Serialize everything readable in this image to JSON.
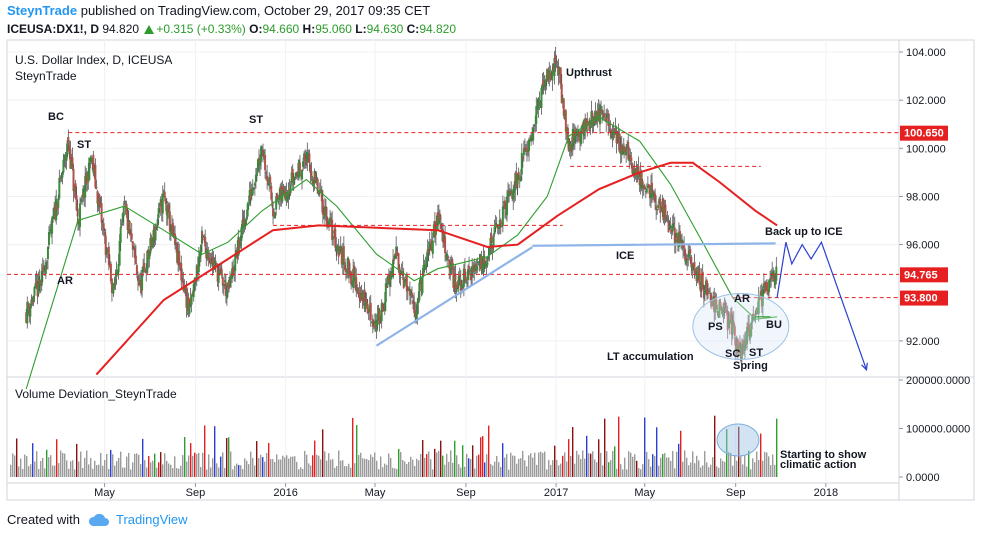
{
  "header": {
    "author": "SteynTrade",
    "published_text": "published on TradingView.com, October 29, 2017 09:35 CET",
    "symbol": "ICEUSA:DX1!, D",
    "last": "94.820",
    "change": "+0.315 (+0.33%)",
    "o_label": "O:",
    "o_value": "94.660",
    "h_label": "H:",
    "h_value": "95.060",
    "l_label": "L:",
    "l_value": "94.630",
    "c_label": "C:",
    "c_value": "94.820"
  },
  "footer": {
    "created_with": "Created with",
    "brand": "TradingView"
  },
  "chart_data": [
    {
      "type": "candlestick",
      "title": "U.S. Dollar Index, D, ICEUSA",
      "subtitle": "SteynTrade",
      "ylim": [
        90.5,
        104.5
      ],
      "y_ticks": [
        "104.000",
        "102.000",
        "100.000",
        "98.000",
        "96.000",
        "92.000"
      ],
      "x_ticks": [
        "May",
        "Sep",
        "2016",
        "May",
        "Sep",
        "2017",
        "May",
        "Sep",
        "2018"
      ],
      "price_path": [
        {
          "x": "2015-01-15",
          "y": 93.2
        },
        {
          "x": "2015-02-05",
          "y": 94.5
        },
        {
          "x": "2015-03-13",
          "y": 100.3
        },
        {
          "x": "2015-03-26",
          "y": 97.0
        },
        {
          "x": "2015-04-13",
          "y": 99.6
        },
        {
          "x": "2015-05-13",
          "y": 94.0
        },
        {
          "x": "2015-05-28",
          "y": 97.5
        },
        {
          "x": "2015-06-18",
          "y": 94.2
        },
        {
          "x": "2015-07-20",
          "y": 98.0
        },
        {
          "x": "2015-08-24",
          "y": 93.2
        },
        {
          "x": "2015-09-10",
          "y": 96.2
        },
        {
          "x": "2015-10-15",
          "y": 94.0
        },
        {
          "x": "2015-11-30",
          "y": 100.2
        },
        {
          "x": "2015-12-15",
          "y": 97.5
        },
        {
          "x": "2016-01-29",
          "y": 99.6
        },
        {
          "x": "2016-03-10",
          "y": 96.0
        },
        {
          "x": "2016-05-03",
          "y": 92.6
        },
        {
          "x": "2016-05-30",
          "y": 95.6
        },
        {
          "x": "2016-06-23",
          "y": 93.2
        },
        {
          "x": "2016-07-25",
          "y": 97.2
        },
        {
          "x": "2016-08-18",
          "y": 94.2
        },
        {
          "x": "2016-09-30",
          "y": 95.6
        },
        {
          "x": "2016-11-10",
          "y": 98.8
        },
        {
          "x": "2016-12-20",
          "y": 103.0
        },
        {
          "x": "2017-01-03",
          "y": 103.5
        },
        {
          "x": "2017-01-18",
          "y": 100.2
        },
        {
          "x": "2017-02-28",
          "y": 101.5
        },
        {
          "x": "2017-04-03",
          "y": 100.0
        },
        {
          "x": "2017-04-24",
          "y": 98.8
        },
        {
          "x": "2017-06-05",
          "y": 96.8
        },
        {
          "x": "2017-07-20",
          "y": 94.2
        },
        {
          "x": "2017-08-28",
          "y": 92.6
        },
        {
          "x": "2017-09-08",
          "y": 91.3
        },
        {
          "x": "2017-09-28",
          "y": 93.4
        },
        {
          "x": "2017-10-27",
          "y": 94.8
        }
      ],
      "ma_fast": {
        "color": "#2e9e2e",
        "points": [
          {
            "x": "2015-01-15",
            "y": 90.0
          },
          {
            "x": "2015-03-26",
            "y": 97.0
          },
          {
            "x": "2015-05-28",
            "y": 97.6
          },
          {
            "x": "2015-07-20",
            "y": 96.6
          },
          {
            "x": "2015-09-10",
            "y": 95.6
          },
          {
            "x": "2015-10-15",
            "y": 96.1
          },
          {
            "x": "2015-11-30",
            "y": 97.4
          },
          {
            "x": "2016-01-29",
            "y": 98.7
          },
          {
            "x": "2016-03-10",
            "y": 97.6
          },
          {
            "x": "2016-05-03",
            "y": 95.6
          },
          {
            "x": "2016-06-23",
            "y": 94.5
          },
          {
            "x": "2016-07-25",
            "y": 95.0
          },
          {
            "x": "2016-09-30",
            "y": 95.5
          },
          {
            "x": "2016-11-10",
            "y": 96.4
          },
          {
            "x": "2016-12-20",
            "y": 98.0
          },
          {
            "x": "2017-01-18",
            "y": 100.5
          },
          {
            "x": "2017-02-28",
            "y": 101.3
          },
          {
            "x": "2017-04-24",
            "y": 100.3
          },
          {
            "x": "2017-06-05",
            "y": 98.5
          },
          {
            "x": "2017-07-20",
            "y": 96.0
          },
          {
            "x": "2017-08-28",
            "y": 93.8
          },
          {
            "x": "2017-09-28",
            "y": 92.9
          },
          {
            "x": "2017-10-27",
            "y": 93.0
          }
        ]
      },
      "ma_slow": {
        "color": "#e62020",
        "points": [
          {
            "x": "2015-04-20",
            "y": 90.6
          },
          {
            "x": "2015-07-20",
            "y": 93.7
          },
          {
            "x": "2015-10-15",
            "y": 95.4
          },
          {
            "x": "2015-12-15",
            "y": 96.6
          },
          {
            "x": "2016-02-15",
            "y": 96.8
          },
          {
            "x": "2016-05-03",
            "y": 96.7
          },
          {
            "x": "2016-07-25",
            "y": 96.6
          },
          {
            "x": "2016-09-30",
            "y": 95.9
          },
          {
            "x": "2016-11-10",
            "y": 96.0
          },
          {
            "x": "2017-01-03",
            "y": 97.2
          },
          {
            "x": "2017-02-28",
            "y": 98.3
          },
          {
            "x": "2017-04-24",
            "y": 99.0
          },
          {
            "x": "2017-06-05",
            "y": 99.4
          },
          {
            "x": "2017-07-05",
            "y": 99.4
          },
          {
            "x": "2017-08-10",
            "y": 98.6
          },
          {
            "x": "2017-09-28",
            "y": 97.4
          },
          {
            "x": "2017-10-27",
            "y": 96.8
          }
        ]
      },
      "dashed_levels": [
        {
          "value": 100.65,
          "label": "100.650",
          "color": "#e62020",
          "from": "2015-03-13",
          "to": "2018-04-10"
        },
        {
          "value": 94.765,
          "label": "94.765",
          "color": "#e62020",
          "from": "2014-12-20",
          "to": "2018-04-10"
        },
        {
          "value": 93.8,
          "label": "93.800",
          "color": "#e62020",
          "from": "2017-08-28",
          "to": "2018-04-10"
        },
        {
          "value": 96.8,
          "label": "",
          "color": "#e62020",
          "from": "2015-12-15",
          "to": "2017-01-10"
        },
        {
          "value": 99.25,
          "label": "",
          "color": "#e62020",
          "from": "2017-01-20",
          "to": "2017-10-05"
        }
      ],
      "trendlines": [
        {
          "name": "uptrend",
          "color": "#8fb4e8",
          "from": {
            "x": "2016-05-03",
            "y": 91.8
          },
          "to": {
            "x": "2016-11-30",
            "y": 95.9
          }
        },
        {
          "name": "ICE",
          "color": "#8fb4e8",
          "from": {
            "x": "2016-11-30",
            "y": 95.95
          },
          "to": {
            "x": "2017-10-25",
            "y": 96.05
          }
        }
      ],
      "projection": {
        "color": "#2a3fd0",
        "points": [
          {
            "x": "2017-10-27",
            "y": 93.8
          },
          {
            "x": "2017-11-08",
            "y": 96.1
          },
          {
            "x": "2017-11-16",
            "y": 95.2
          },
          {
            "x": "2017-11-30",
            "y": 96.0
          },
          {
            "x": "2017-12-12",
            "y": 95.4
          },
          {
            "x": "2017-12-26",
            "y": 96.1
          },
          {
            "x": "2018-02-25",
            "y": 90.8
          }
        ]
      },
      "annotations": [
        "BC",
        "ST",
        "AR",
        "ST",
        "Upthrust",
        "ICE",
        "Back up to ICE",
        "AR",
        "PS",
        "BU",
        "SC",
        "ST",
        "Spring",
        "LT accumulation"
      ]
    },
    {
      "type": "bar",
      "title": "Volume Deviation_SteynTrade",
      "ylim": [
        0,
        200000
      ],
      "y_ticks": [
        "200000.0000",
        "100000.0000",
        "0.0000"
      ],
      "highlight_colors": [
        "#e62020",
        "#2e9e2e",
        "#8b1010",
        "#2a3fd0"
      ]
    }
  ],
  "volume_note": {
    "line1": "Starting to show",
    "line2": "climatic action"
  }
}
